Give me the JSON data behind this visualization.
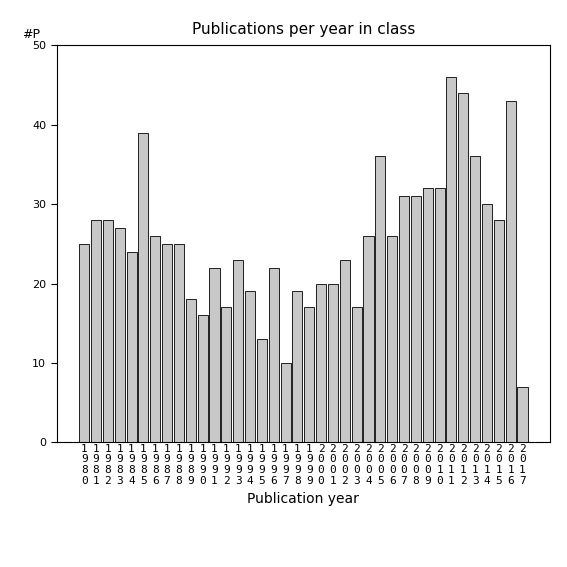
{
  "title": "Publications per year in class",
  "xlabel": "Publication year",
  "ylabel": "#P",
  "ylim": [
    0,
    50
  ],
  "yticks": [
    0,
    10,
    20,
    30,
    40,
    50
  ],
  "bar_color": "#c8c8c8",
  "bar_edgecolor": "#000000",
  "categories": [
    "1980",
    "1981",
    "1982",
    "1983",
    "1984",
    "1985",
    "1986",
    "1987",
    "1988",
    "1989",
    "1990",
    "1991",
    "1992",
    "1993",
    "1994",
    "1995",
    "1996",
    "1997",
    "1998",
    "1999",
    "2000",
    "2001",
    "2002",
    "2003",
    "2004",
    "2005",
    "2006",
    "2007",
    "2008",
    "2009",
    "2010",
    "2011",
    "2012",
    "2013",
    "2014",
    "2015",
    "2016",
    "2017"
  ],
  "values": [
    25,
    28,
    28,
    27,
    24,
    39,
    26,
    25,
    25,
    18,
    16,
    22,
    17,
    23,
    19,
    13,
    22,
    10,
    19,
    17,
    20,
    20,
    23,
    17,
    26,
    36,
    26,
    31,
    31,
    32,
    32,
    46,
    44,
    36,
    30,
    28,
    43,
    7
  ],
  "title_fontsize": 11,
  "xlabel_fontsize": 10,
  "tick_fontsize": 8
}
